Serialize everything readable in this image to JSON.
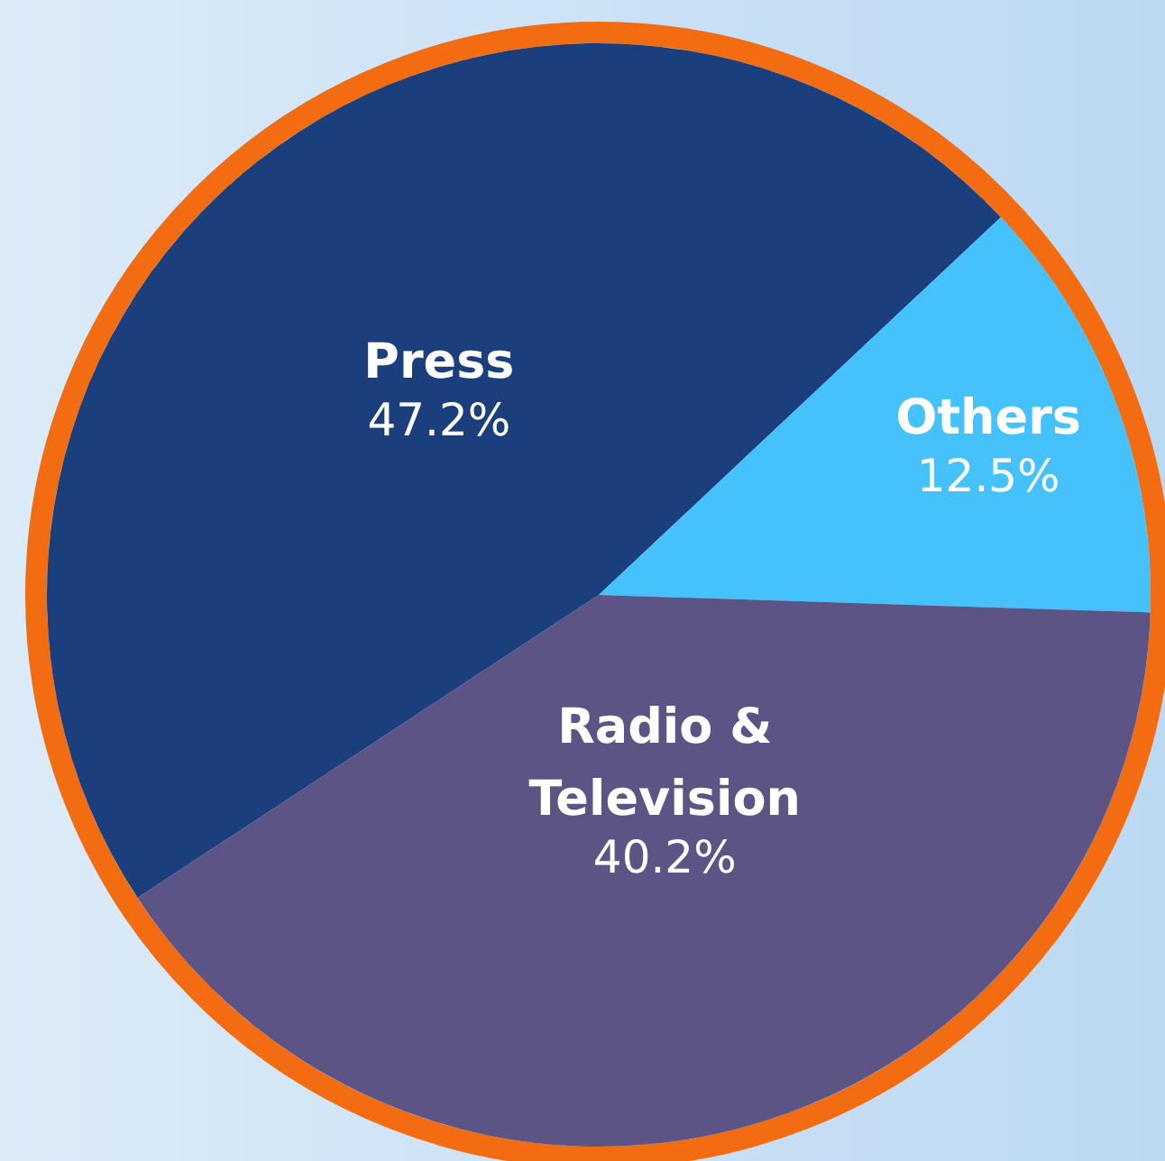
{
  "chart_data": {
    "type": "pie",
    "categories": [
      "Press",
      "Others",
      "Radio & Television"
    ],
    "values": [
      47.2,
      12.5,
      40.2
    ],
    "colors": [
      "#1b3f7c",
      "#45c2fb",
      "#5c5485"
    ],
    "value_labels": [
      "47.2%",
      "12.5%",
      "40.2%"
    ]
  }
}
